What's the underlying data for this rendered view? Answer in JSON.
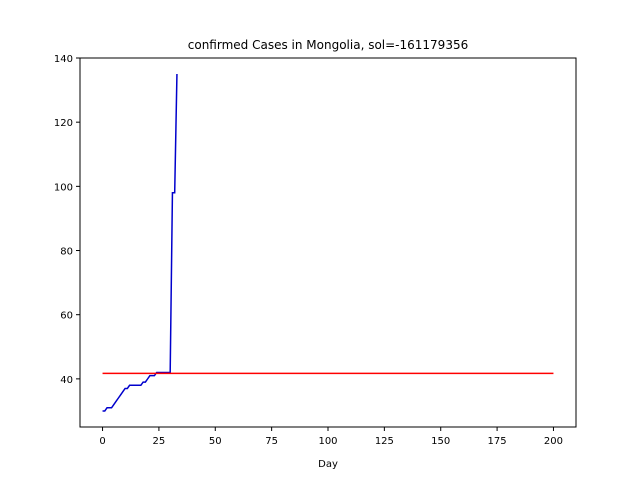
{
  "chart_data": {
    "type": "line",
    "title": "confirmed Cases in Mongolia, sol=-161179356",
    "xlabel": "Day",
    "ylabel": "",
    "xlim": [
      -10,
      210
    ],
    "ylim": [
      25,
      140
    ],
    "xticks": [
      0,
      25,
      50,
      75,
      100,
      125,
      150,
      175,
      200
    ],
    "yticks": [
      40,
      60,
      80,
      100,
      120,
      140
    ],
    "grid": false,
    "series": [
      {
        "color": "#0000cc",
        "x": [
          0,
          1,
          2,
          3,
          4,
          5,
          6,
          7,
          8,
          9,
          10,
          11,
          12,
          13,
          14,
          15,
          16,
          17,
          18,
          19,
          20,
          21,
          22,
          23,
          24,
          25,
          26,
          27,
          28,
          29,
          30,
          31,
          32,
          33
        ],
        "y": [
          30,
          30,
          31,
          31,
          31,
          32,
          33,
          34,
          35,
          36,
          37,
          37,
          38,
          38,
          38,
          38,
          38,
          38,
          39,
          39,
          40,
          41,
          41,
          41,
          42,
          42,
          42,
          42,
          42,
          42,
          42,
          98,
          98,
          135
        ]
      },
      {
        "color": "#ff0000",
        "x": [
          0,
          200
        ],
        "y": [
          41.7,
          41.7
        ]
      }
    ]
  }
}
